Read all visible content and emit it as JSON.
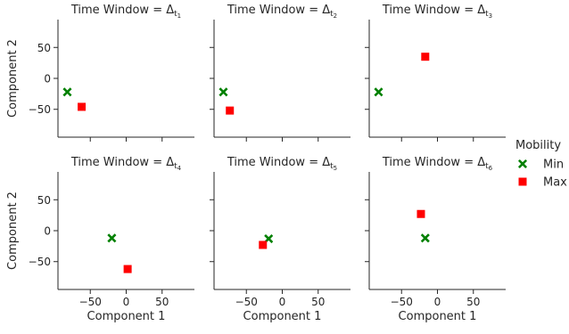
{
  "chart_data": {
    "type": "scatter",
    "legend": {
      "title": "Mobility",
      "placement": "right",
      "entries": [
        {
          "name": "Min",
          "marker": "x",
          "color": "#008000"
        },
        {
          "name": "Max",
          "marker": "square",
          "color": "#ff0000"
        }
      ]
    },
    "xlabel": "Component 1",
    "ylabel": "Component 2",
    "xlim": [
      -95,
      95
    ],
    "ylim": [
      -95,
      95
    ],
    "xticks": [
      -50,
      0,
      50
    ],
    "yticks": [
      50,
      0,
      -50
    ],
    "xtick_labels": [
      "−50",
      "0",
      "50"
    ],
    "ytick_labels": [
      "50",
      "0",
      "−50"
    ],
    "grid": false,
    "title_prefix": "Time Window = ",
    "title_symbol": "Δ",
    "title_sub_letter": "t",
    "panels": [
      {
        "sub": "1",
        "points": {
          "Min": [
            -82,
            -22
          ],
          "Max": [
            -62,
            -46
          ]
        }
      },
      {
        "sub": "2",
        "points": {
          "Min": [
            -82,
            -22
          ],
          "Max": [
            -73,
            -52
          ]
        }
      },
      {
        "sub": "3",
        "points": {
          "Min": [
            -82,
            -22
          ],
          "Max": [
            -17,
            35
          ]
        }
      },
      {
        "sub": "4",
        "points": {
          "Min": [
            -20,
            -12
          ],
          "Max": [
            2,
            -62
          ]
        }
      },
      {
        "sub": "5",
        "points": {
          "Min": [
            -19,
            -13
          ],
          "Max": [
            -27,
            -23
          ]
        }
      },
      {
        "sub": "6",
        "points": {
          "Min": [
            -17,
            -12
          ],
          "Max": [
            -23,
            27
          ]
        }
      }
    ]
  }
}
